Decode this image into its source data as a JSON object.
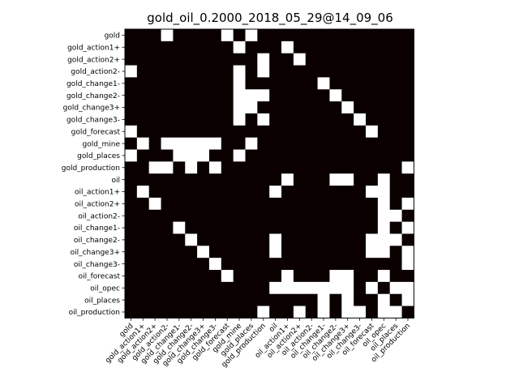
{
  "chart_data": {
    "type": "heatmap",
    "title": "gold_oil_0.2000_2018_05_29@14_09_06",
    "labels": [
      "gold",
      "gold_action1+",
      "gold_action2+",
      "gold_action2-",
      "gold_change1-",
      "gold_change2-",
      "gold_change3+",
      "gold_change3-",
      "gold_forecast",
      "gold_mine",
      "gold_places",
      "gold_production",
      "oil",
      "oil_action1+",
      "oil_action2+",
      "oil_action2-",
      "oil_change1-",
      "oil_change2-",
      "oil_change3+",
      "oil_change3-",
      "oil_forecast",
      "oil_opec",
      "oil_places",
      "oil_production"
    ],
    "matrix": [
      [
        0,
        0,
        0,
        1,
        0,
        0,
        0,
        0,
        1,
        0,
        1,
        0,
        0,
        0,
        0,
        0,
        0,
        0,
        0,
        0,
        0,
        0,
        0,
        0
      ],
      [
        0,
        0,
        0,
        0,
        0,
        0,
        0,
        0,
        0,
        1,
        0,
        0,
        0,
        1,
        0,
        0,
        0,
        0,
        0,
        0,
        0,
        0,
        0,
        0
      ],
      [
        0,
        0,
        0,
        0,
        0,
        0,
        0,
        0,
        0,
        0,
        0,
        1,
        0,
        0,
        1,
        0,
        0,
        0,
        0,
        0,
        0,
        0,
        0,
        0
      ],
      [
        1,
        0,
        0,
        0,
        0,
        0,
        0,
        0,
        0,
        1,
        0,
        1,
        0,
        0,
        0,
        0,
        0,
        0,
        0,
        0,
        0,
        0,
        0,
        0
      ],
      [
        0,
        0,
        0,
        0,
        0,
        0,
        0,
        0,
        0,
        1,
        0,
        0,
        0,
        0,
        0,
        0,
        1,
        0,
        0,
        0,
        0,
        0,
        0,
        0
      ],
      [
        0,
        0,
        0,
        0,
        0,
        0,
        0,
        0,
        0,
        1,
        1,
        1,
        0,
        0,
        0,
        0,
        0,
        1,
        0,
        0,
        0,
        0,
        0,
        0
      ],
      [
        0,
        0,
        0,
        0,
        0,
        0,
        0,
        0,
        0,
        1,
        1,
        0,
        0,
        0,
        0,
        0,
        0,
        0,
        1,
        0,
        0,
        0,
        0,
        0
      ],
      [
        0,
        0,
        0,
        0,
        0,
        0,
        0,
        0,
        0,
        1,
        0,
        1,
        0,
        0,
        0,
        0,
        0,
        0,
        0,
        1,
        0,
        0,
        0,
        0
      ],
      [
        1,
        0,
        0,
        0,
        0,
        0,
        0,
        0,
        0,
        0,
        0,
        0,
        0,
        0,
        0,
        0,
        0,
        0,
        0,
        0,
        1,
        0,
        0,
        0
      ],
      [
        0,
        1,
        0,
        1,
        1,
        1,
        1,
        1,
        0,
        0,
        1,
        0,
        0,
        0,
        0,
        0,
        0,
        0,
        0,
        0,
        0,
        0,
        0,
        0
      ],
      [
        1,
        0,
        0,
        0,
        1,
        1,
        1,
        0,
        0,
        1,
        0,
        0,
        0,
        0,
        0,
        0,
        0,
        0,
        0,
        0,
        0,
        0,
        0,
        0
      ],
      [
        0,
        0,
        1,
        1,
        0,
        1,
        0,
        1,
        0,
        0,
        0,
        0,
        0,
        0,
        0,
        0,
        0,
        0,
        0,
        0,
        0,
        0,
        0,
        1
      ],
      [
        0,
        0,
        0,
        0,
        0,
        0,
        0,
        0,
        0,
        0,
        0,
        0,
        0,
        1,
        0,
        0,
        0,
        1,
        1,
        0,
        0,
        1,
        0,
        0
      ],
      [
        0,
        1,
        0,
        0,
        0,
        0,
        0,
        0,
        0,
        0,
        0,
        0,
        1,
        0,
        0,
        0,
        0,
        0,
        0,
        0,
        1,
        1,
        0,
        0
      ],
      [
        0,
        0,
        1,
        0,
        0,
        0,
        0,
        0,
        0,
        0,
        0,
        0,
        0,
        0,
        0,
        0,
        0,
        0,
        0,
        0,
        0,
        1,
        0,
        1
      ],
      [
        0,
        0,
        0,
        0,
        0,
        0,
        0,
        0,
        0,
        0,
        0,
        0,
        0,
        0,
        0,
        0,
        0,
        0,
        0,
        0,
        0,
        1,
        1,
        0
      ],
      [
        0,
        0,
        0,
        0,
        1,
        0,
        0,
        0,
        0,
        0,
        0,
        0,
        0,
        0,
        0,
        0,
        0,
        0,
        0,
        0,
        0,
        1,
        0,
        1
      ],
      [
        0,
        0,
        0,
        0,
        0,
        1,
        0,
        0,
        0,
        0,
        0,
        0,
        1,
        0,
        0,
        0,
        0,
        0,
        0,
        0,
        1,
        1,
        1,
        0
      ],
      [
        0,
        0,
        0,
        0,
        0,
        0,
        1,
        0,
        0,
        0,
        0,
        0,
        1,
        0,
        0,
        0,
        0,
        0,
        0,
        0,
        1,
        1,
        0,
        1
      ],
      [
        0,
        0,
        0,
        0,
        0,
        0,
        0,
        1,
        0,
        0,
        0,
        0,
        0,
        0,
        0,
        0,
        0,
        0,
        0,
        0,
        0,
        0,
        0,
        1
      ],
      [
        0,
        0,
        0,
        0,
        0,
        0,
        0,
        0,
        1,
        0,
        0,
        0,
        0,
        1,
        0,
        0,
        0,
        1,
        1,
        0,
        0,
        1,
        0,
        0
      ],
      [
        0,
        0,
        0,
        0,
        0,
        0,
        0,
        0,
        0,
        0,
        0,
        0,
        1,
        1,
        1,
        1,
        1,
        1,
        1,
        0,
        1,
        0,
        1,
        1
      ],
      [
        0,
        0,
        0,
        0,
        0,
        0,
        0,
        0,
        0,
        0,
        0,
        0,
        0,
        0,
        0,
        0,
        1,
        0,
        1,
        0,
        0,
        1,
        0,
        1
      ],
      [
        0,
        0,
        0,
        0,
        0,
        0,
        0,
        0,
        0,
        0,
        0,
        1,
        0,
        0,
        1,
        0,
        1,
        0,
        1,
        1,
        0,
        1,
        1,
        0
      ]
    ],
    "colors": {
      "on": "#ffffff",
      "off": "#0b0000",
      "frame": "#000000"
    },
    "grid": false,
    "legend": "none"
  }
}
